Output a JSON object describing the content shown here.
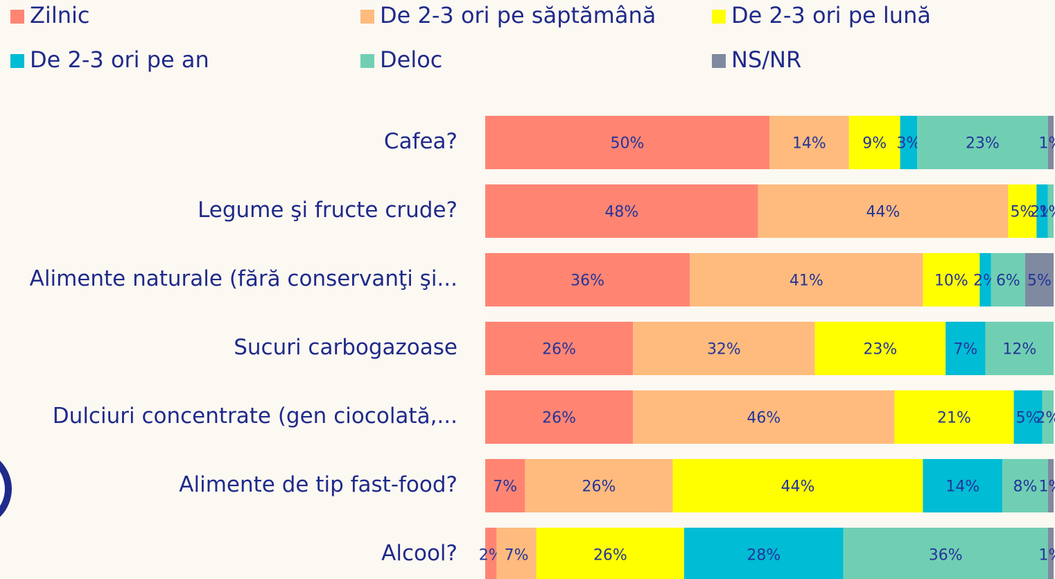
{
  "chart_data": {
    "type": "stacked-bar",
    "categories": [
      "Cafea?",
      "Legume şi fructe crude?",
      "Alimente naturale (fără conservanţi şi...",
      "Sucuri carbogazoase",
      "Dulciuri concentrate (gen ciocolată,...",
      "Alimente de tip fast-food?",
      "Alcool?"
    ],
    "series": [
      {
        "name": "Zilnic",
        "color": "#ff8572",
        "values": [
          50,
          48,
          36,
          26,
          26,
          7,
          2
        ],
        "value_labels": [
          "50%",
          "48%",
          "36%",
          "26%",
          "26%",
          "7%",
          "2%"
        ]
      },
      {
        "name": "De 2-3 ori pe săptămână",
        "color": "#ffbb7d",
        "values": [
          14,
          44,
          41,
          32,
          46,
          26,
          7
        ],
        "value_labels": [
          "14%",
          "44%",
          "41%",
          "32%",
          "46%",
          "26%",
          "7%"
        ]
      },
      {
        "name": "De 2-3 ori pe lună",
        "color": "#ffff00",
        "values": [
          9,
          5,
          10,
          23,
          21,
          44,
          26
        ],
        "value_labels": [
          "9%",
          "5%",
          "10%",
          "23%",
          "21%",
          "44%",
          "26%"
        ]
      },
      {
        "name": "De 2-3 ori pe an",
        "color": "#00bcd4",
        "values": [
          3,
          2,
          2,
          7,
          5,
          14,
          28
        ],
        "value_labels": [
          "3%",
          "2%",
          "2%",
          "7%",
          "5%",
          "14%",
          "28%"
        ]
      },
      {
        "name": "Deloc",
        "color": "#70cfb3",
        "values": [
          23,
          1,
          6,
          12,
          2,
          8,
          36
        ],
        "value_labels": [
          "23%",
          "1%",
          "6%",
          "12%",
          "2%",
          "8%",
          "36%"
        ]
      },
      {
        "name": "NS/NR",
        "color": "#7f8aa0",
        "values": [
          1,
          null,
          5,
          null,
          null,
          1,
          1
        ],
        "value_labels": [
          "1%",
          null,
          "5%",
          null,
          null,
          "1%",
          "1%"
        ]
      }
    ]
  }
}
